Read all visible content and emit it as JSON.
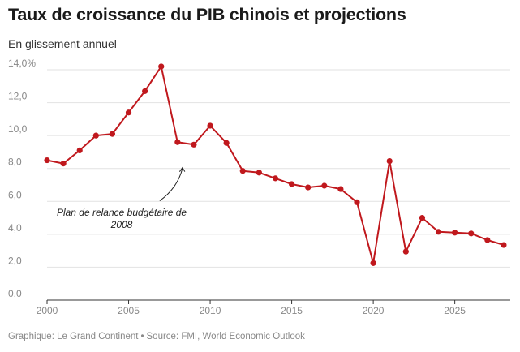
{
  "header": {
    "title": "Taux de croissance du PIB chinois et projections",
    "subtitle": "En glissement annuel"
  },
  "footer": {
    "credit": "Graphique: Le Grand Continent",
    "separator": "•",
    "source": "Source: FMI, World Economic Outlook"
  },
  "colors": {
    "line": "#c0181d",
    "grid": "#e2e2e2",
    "axis": "#333333"
  },
  "chart_data": {
    "type": "line",
    "title": "Taux de croissance du PIB chinois et projections",
    "subtitle": "En glissement annuel",
    "xlabel": "",
    "ylabel": "",
    "xlim": [
      2000,
      2028.4
    ],
    "ylim": [
      0,
      14
    ],
    "grid": true,
    "x_ticks": [
      2000,
      2005,
      2010,
      2015,
      2020,
      2025
    ],
    "x_tick_labels": [
      "2000",
      "2005",
      "2010",
      "2015",
      "2020",
      "2025"
    ],
    "y_ticks": [
      0,
      2,
      4,
      6,
      8,
      10,
      12,
      14
    ],
    "y_tick_labels": [
      "0,0",
      "2,0",
      "4,0",
      "6,0",
      "8,0",
      "10,0",
      "12,0",
      "14,0%"
    ],
    "series": [
      {
        "x": [
          2000,
          2001,
          2002,
          2003,
          2004,
          2005,
          2006,
          2007,
          2008,
          2009,
          2010,
          2011,
          2012,
          2013,
          2014,
          2015,
          2016,
          2017,
          2018,
          2019,
          2020,
          2021,
          2022,
          2023,
          2024,
          2025,
          2026,
          2027,
          2028
        ],
        "values": [
          8.5,
          8.3,
          9.1,
          10.0,
          10.1,
          11.4,
          12.7,
          14.2,
          9.6,
          9.45,
          10.6,
          9.55,
          7.85,
          7.75,
          7.4,
          7.05,
          6.85,
          6.95,
          6.75,
          5.95,
          2.25,
          8.45,
          2.95,
          5.0,
          4.15,
          4.1,
          4.05,
          3.65,
          3.35
        ]
      }
    ],
    "annotations": [
      {
        "text_lines": [
          "Plan de relance budgétaire de",
          "2008"
        ],
        "points_to": {
          "x": 2008.3,
          "y": 8.2
        }
      }
    ]
  }
}
